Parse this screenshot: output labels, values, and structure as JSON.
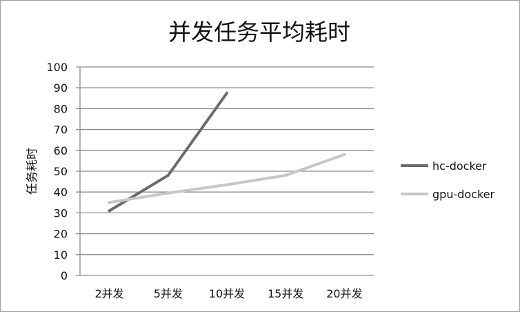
{
  "chart_data": {
    "type": "line",
    "title": "并发任务平均耗时",
    "xlabel": "",
    "ylabel": "任务耗时",
    "categories": [
      "2并发",
      "5并发",
      "10并发",
      "15并发",
      "20并发"
    ],
    "ylim": [
      0,
      100
    ],
    "yticks": [
      0,
      10,
      20,
      30,
      40,
      50,
      60,
      70,
      80,
      90,
      100
    ],
    "grid": "horizontal",
    "legend_position": "right",
    "series": [
      {
        "name": "hc-docker",
        "values": [
          31,
          48,
          87.5,
          null,
          null
        ],
        "color": "#6b6b6b"
      },
      {
        "name": "gpu-docker",
        "values": [
          35,
          39.5,
          43.5,
          48,
          58
        ],
        "color": "#c6c6c6"
      }
    ]
  }
}
